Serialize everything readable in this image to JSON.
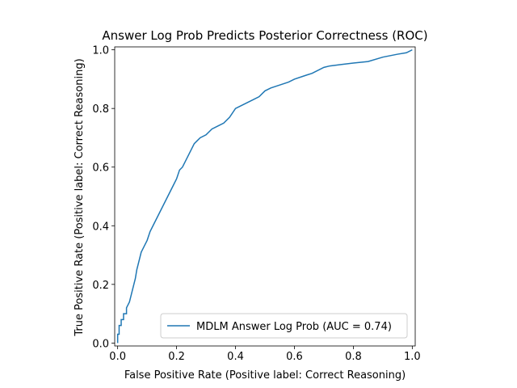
{
  "chart_data": {
    "type": "line",
    "title": "Answer Log Prob Predicts Posterior Correctness (ROC)",
    "xlabel": "False Positive Rate (Positive label: Correct Reasoning)",
    "ylabel": "True Positive Rate (Positive label: Correct Reasoning)",
    "xlim": [
      -0.01,
      1.01
    ],
    "ylim": [
      -0.01,
      1.01
    ],
    "xticks": [
      0.0,
      0.2,
      0.4,
      0.6,
      0.8,
      1.0
    ],
    "yticks": [
      0.0,
      0.2,
      0.4,
      0.6,
      0.8,
      1.0
    ],
    "xtick_labels": [
      "0.0",
      "0.2",
      "0.4",
      "0.6",
      "0.8",
      "1.0"
    ],
    "ytick_labels": [
      "0.0",
      "0.2",
      "0.4",
      "0.6",
      "0.8",
      "1.0"
    ],
    "grid": false,
    "legend_position": "lower right",
    "series": [
      {
        "name": "MDLM Answer Log Prob (AUC = 0.74)",
        "color": "#1f77b4",
        "x": [
          0.0,
          0.0,
          0.005,
          0.005,
          0.012,
          0.012,
          0.02,
          0.02,
          0.03,
          0.03,
          0.04,
          0.045,
          0.05,
          0.055,
          0.06,
          0.065,
          0.07,
          0.075,
          0.08,
          0.085,
          0.09,
          0.1,
          0.11,
          0.12,
          0.13,
          0.14,
          0.15,
          0.16,
          0.17,
          0.18,
          0.19,
          0.2,
          0.21,
          0.22,
          0.23,
          0.24,
          0.25,
          0.26,
          0.27,
          0.28,
          0.3,
          0.32,
          0.34,
          0.36,
          0.38,
          0.4,
          0.42,
          0.44,
          0.46,
          0.48,
          0.5,
          0.52,
          0.55,
          0.58,
          0.6,
          0.63,
          0.66,
          0.7,
          0.72,
          0.76,
          0.8,
          0.85,
          0.9,
          0.95,
          0.98,
          1.0
        ],
        "y": [
          0.0,
          0.03,
          0.03,
          0.06,
          0.06,
          0.08,
          0.08,
          0.1,
          0.1,
          0.12,
          0.14,
          0.16,
          0.18,
          0.2,
          0.22,
          0.25,
          0.27,
          0.29,
          0.31,
          0.32,
          0.33,
          0.35,
          0.38,
          0.4,
          0.42,
          0.44,
          0.46,
          0.48,
          0.5,
          0.52,
          0.54,
          0.56,
          0.59,
          0.6,
          0.62,
          0.64,
          0.66,
          0.68,
          0.69,
          0.7,
          0.71,
          0.73,
          0.74,
          0.75,
          0.77,
          0.8,
          0.81,
          0.82,
          0.83,
          0.84,
          0.86,
          0.87,
          0.88,
          0.89,
          0.9,
          0.91,
          0.92,
          0.94,
          0.945,
          0.95,
          0.955,
          0.96,
          0.975,
          0.985,
          0.99,
          1.0
        ]
      }
    ]
  }
}
